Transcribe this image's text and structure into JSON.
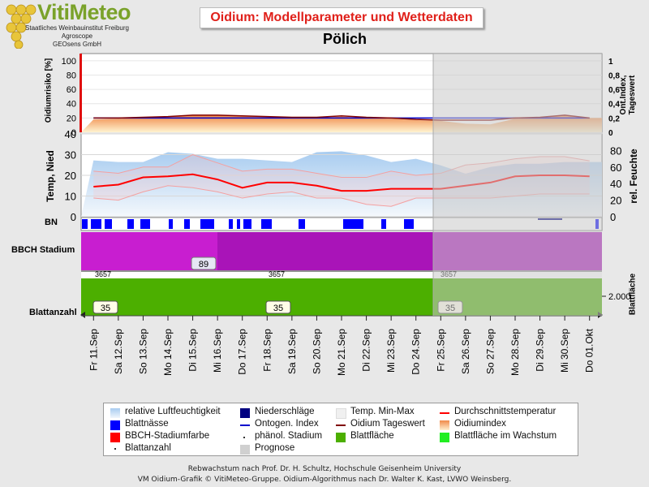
{
  "logo": {
    "title": "VitiMeteo",
    "line1": "Staatliches Weinbauinstitut Freiburg",
    "line2": "Agroscope",
    "line3": "GEOsens GmbH"
  },
  "header": {
    "title": "Oidium: Modellparameter und Wetterdaten"
  },
  "station": "Pölich",
  "colors": {
    "background": "#e8e8e8",
    "prognosis": "#c8c8c8",
    "temp_mean": "#ff0000",
    "ontogen": "#0000cc",
    "oidium_daily": "#800000",
    "blattnaesse": "#0000ff",
    "niederschlaege": "#000080",
    "bbch": "#cc22cc",
    "blattflaeche": "#4caf00"
  },
  "chart_data": [
    {
      "type": "area",
      "name": "oidium-panel",
      "ylabel": "Oidiumrisiko [%]",
      "y2label": "Ont.Index, Tageswert",
      "ylim": [
        0,
        110
      ],
      "yticks": [
        0,
        20,
        40,
        60,
        80,
        100
      ],
      "y2ticks": [
        "0",
        "0,2",
        "0,4",
        "0,6",
        "0,8",
        "1"
      ],
      "x": [
        "Fr 11.Sep",
        "Sa 12.Sep",
        "So 13.Sep",
        "Mo 14.Sep",
        "Di 15.Sep",
        "Mi 16.Sep",
        "Do 17.Sep",
        "Fr 18.Sep",
        "Sa 19.Sep",
        "So 20.Sep",
        "Mo 21.Sep",
        "Di 22.Sep",
        "Mi 23.Sep",
        "Do 24.Sep",
        "Fr 25.Sep",
        "Sa 26.Sep",
        "So 27.Sep",
        "Mo 28.Sep",
        "Di 29.Sep",
        "Mi 30.Sep",
        "Do 01.Okt"
      ],
      "series": [
        {
          "values": [
            18,
            19,
            20,
            22,
            24,
            24,
            23,
            22,
            20,
            20,
            22,
            20,
            19,
            17,
            16,
            12,
            11,
            19,
            20,
            24,
            20
          ]
        },
        {
          "values": [
            20,
            20,
            20,
            20,
            20,
            20,
            20,
            20,
            20,
            20,
            20,
            20,
            20,
            20,
            20,
            20,
            20,
            20,
            20,
            20,
            20
          ]
        },
        {
          "values": [
            20,
            20,
            21,
            22,
            24,
            24,
            23,
            22,
            21,
            21,
            23,
            21,
            20,
            18,
            17,
            17,
            17,
            20,
            21,
            24,
            20
          ]
        }
      ]
    },
    {
      "type": "line",
      "name": "weather-panel",
      "ylabel": "Temp, Nied",
      "y2label": "rel. Feuchte",
      "ylim": [
        0,
        40
      ],
      "yticks": [
        0,
        10,
        20,
        30,
        40
      ],
      "y2ticks": [
        0,
        20,
        40,
        60,
        80
      ],
      "series": [
        {
          "name": "Durchschnittstemperatur",
          "values": [
            14.5,
            15.5,
            19,
            19.5,
            20.5,
            18,
            14,
            16.5,
            16.5,
            15,
            12.5,
            12.5,
            13.5,
            13.5,
            13.5,
            15,
            16.5,
            19.5,
            20,
            20,
            19.5
          ]
        },
        {
          "name": "Temp. Max",
          "values": [
            22,
            21,
            24,
            24,
            30,
            26,
            22,
            23,
            23,
            21,
            19,
            19,
            22,
            20,
            21,
            25,
            26,
            28,
            29,
            29,
            27
          ]
        },
        {
          "name": "Temp. Min",
          "values": [
            9,
            8,
            12,
            15,
            14,
            12,
            9,
            11,
            12,
            9,
            9,
            6,
            5,
            9,
            9,
            9,
            9,
            10,
            11,
            11,
            11
          ]
        },
        {
          "name": "relative Luftfeuchtigkeit",
          "values": [
            68,
            66,
            66,
            78,
            76,
            70,
            70,
            68,
            66,
            78,
            79,
            74,
            66,
            70,
            62,
            52,
            60,
            64,
            64,
            66,
            66
          ]
        }
      ]
    }
  ],
  "bn_label": "BN",
  "bbch": {
    "label": "BBCH Stadium",
    "value": "89",
    "sublabels": [
      "3657",
      "3657",
      "3657"
    ]
  },
  "blatt": {
    "label": "Blattanzahl",
    "ylabel": "Blattfläche",
    "tick": "2.000",
    "values": [
      "35",
      "35",
      "35"
    ]
  },
  "legend": {
    "items": [
      "relative Luftfeuchtigkeit",
      "Niederschläge",
      "Temp. Min-Max",
      "Durchschnittstemperatur",
      "Blattnässe",
      "Ontogen. Index",
      "Oidium Tageswert",
      "Oidiumindex",
      "BBCH-Stadiumfarbe",
      "phänol. Stadium",
      "Blattfläche",
      "Blattfläche im Wachstum",
      "Blattanzahl",
      "Prognose"
    ]
  },
  "footer": {
    "line1": "Rebwachstum nach Prof. Dr. H. Schultz, Hochschule Geisenheim University",
    "line2": "VM Oidium-Grafik © VitiMeteo-Gruppe. Oidium-Algorithmus nach Dr. Walter K. Kast, LVWO Weinsberg."
  }
}
